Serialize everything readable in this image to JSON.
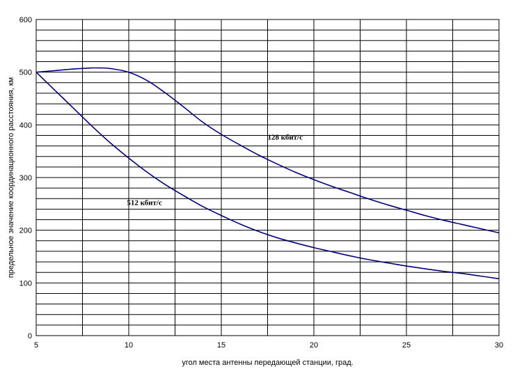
{
  "chart_data": {
    "type": "line",
    "xlabel": "угол места антенны передающей станции, град.",
    "ylabel": "предельное значение координационного расстояния, км",
    "xlim": [
      5,
      30
    ],
    "ylim": [
      0,
      600
    ],
    "x_ticks": [
      5,
      10,
      15,
      20,
      25,
      30
    ],
    "y_ticks": [
      0,
      100,
      200,
      300,
      400,
      500,
      600
    ],
    "x_ticks_text": [
      "5",
      "10",
      "15",
      "20",
      "25",
      "30"
    ],
    "y_ticks_text": [
      "0",
      "100",
      "200",
      "300",
      "400",
      "500",
      "600"
    ],
    "grid": {
      "horizontal": true,
      "horizontal_step": 20,
      "vertical": [
        5,
        7.5,
        10,
        12.5,
        15,
        17.5,
        20,
        22.5,
        25,
        27.5,
        30
      ]
    },
    "colors": {
      "series": "#000080",
      "grid": "#000000"
    },
    "series": [
      {
        "label": "128 кбит/с",
        "label_x": 17.5,
        "label_y": 372,
        "x": [
          5,
          6,
          7,
          8,
          8.5,
          9,
          10,
          11,
          12,
          13,
          14,
          15,
          16,
          17,
          18,
          19,
          20,
          21,
          22,
          23,
          24,
          25,
          26,
          27,
          28,
          29,
          30
        ],
        "y": [
          500,
          503,
          506,
          508,
          508,
          507,
          500,
          484,
          460,
          433,
          405,
          382,
          362,
          343,
          326,
          310,
          296,
          283,
          271,
          259,
          248,
          238,
          228,
          219,
          211,
          203,
          195
        ]
      },
      {
        "label": "512 кбит/с",
        "label_x": 9.9,
        "label_y": 248,
        "x": [
          5,
          6,
          7,
          8,
          9,
          10,
          11,
          12,
          13,
          14,
          15,
          16,
          17,
          18,
          19,
          20,
          21,
          22,
          23,
          24,
          25,
          26,
          27,
          28,
          29,
          30
        ],
        "y": [
          500,
          466,
          432,
          398,
          366,
          337,
          310,
          286,
          265,
          245,
          228,
          212,
          198,
          186,
          176,
          167,
          159,
          151,
          144,
          138,
          132,
          127,
          122,
          118,
          113,
          108
        ]
      }
    ]
  }
}
